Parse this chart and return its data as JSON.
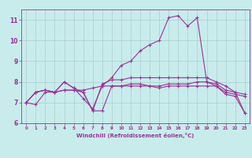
{
  "xlabel": "Windchill (Refroidissement éolien,°C)",
  "ylabel": "",
  "bg_color": "#c8ecec",
  "line_color": "#993399",
  "grid_color": "#aacccc",
  "xlim": [
    -0.5,
    23.5
  ],
  "ylim": [
    6.0,
    11.5
  ],
  "yticks": [
    6,
    7,
    8,
    9,
    10,
    11
  ],
  "xticks": [
    0,
    1,
    2,
    3,
    4,
    5,
    6,
    7,
    8,
    9,
    10,
    11,
    12,
    13,
    14,
    15,
    16,
    17,
    18,
    19,
    20,
    21,
    22,
    23
  ],
  "series": [
    {
      "x": [
        0,
        1,
        2,
        3,
        4,
        5,
        6,
        7,
        8,
        9,
        10,
        11,
        12,
        13,
        14,
        15,
        16,
        17,
        18,
        19,
        20,
        21,
        22,
        23
      ],
      "y": [
        7.0,
        6.9,
        7.5,
        7.5,
        8.0,
        7.7,
        7.2,
        6.7,
        7.8,
        8.2,
        8.8,
        9.0,
        9.5,
        9.8,
        10.0,
        11.1,
        11.2,
        10.7,
        11.1,
        8.0,
        7.8,
        7.4,
        7.3,
        6.5
      ]
    },
    {
      "x": [
        0,
        1,
        2,
        3,
        4,
        5,
        6,
        7,
        8,
        9,
        10,
        11,
        12,
        13,
        14,
        15,
        16,
        17,
        18,
        19,
        20,
        21,
        22,
        23
      ],
      "y": [
        7.0,
        7.5,
        7.6,
        7.5,
        7.6,
        7.6,
        7.6,
        7.7,
        7.8,
        7.8,
        7.8,
        7.8,
        7.8,
        7.8,
        7.8,
        7.9,
        7.9,
        7.9,
        8.0,
        8.0,
        7.9,
        7.6,
        7.5,
        7.4
      ]
    },
    {
      "x": [
        0,
        1,
        2,
        3,
        4,
        5,
        6,
        7,
        8,
        9,
        10,
        11,
        12,
        13,
        14,
        15,
        16,
        17,
        18,
        19,
        20,
        21,
        22,
        23
      ],
      "y": [
        7.0,
        7.5,
        7.6,
        7.5,
        7.6,
        7.6,
        7.5,
        6.6,
        6.6,
        7.8,
        7.8,
        7.9,
        7.9,
        7.8,
        7.7,
        7.8,
        7.8,
        7.8,
        7.8,
        7.8,
        7.8,
        7.5,
        7.4,
        7.3
      ]
    },
    {
      "x": [
        0,
        1,
        2,
        3,
        4,
        5,
        6,
        7,
        8,
        9,
        10,
        11,
        12,
        13,
        14,
        15,
        16,
        17,
        18,
        19,
        20,
        21,
        22,
        23
      ],
      "y": [
        7.0,
        7.5,
        7.6,
        7.5,
        8.0,
        7.7,
        7.5,
        6.6,
        7.9,
        8.1,
        8.1,
        8.2,
        8.2,
        8.2,
        8.2,
        8.2,
        8.2,
        8.2,
        8.2,
        8.2,
        8.0,
        7.8,
        7.5,
        6.5
      ]
    }
  ]
}
